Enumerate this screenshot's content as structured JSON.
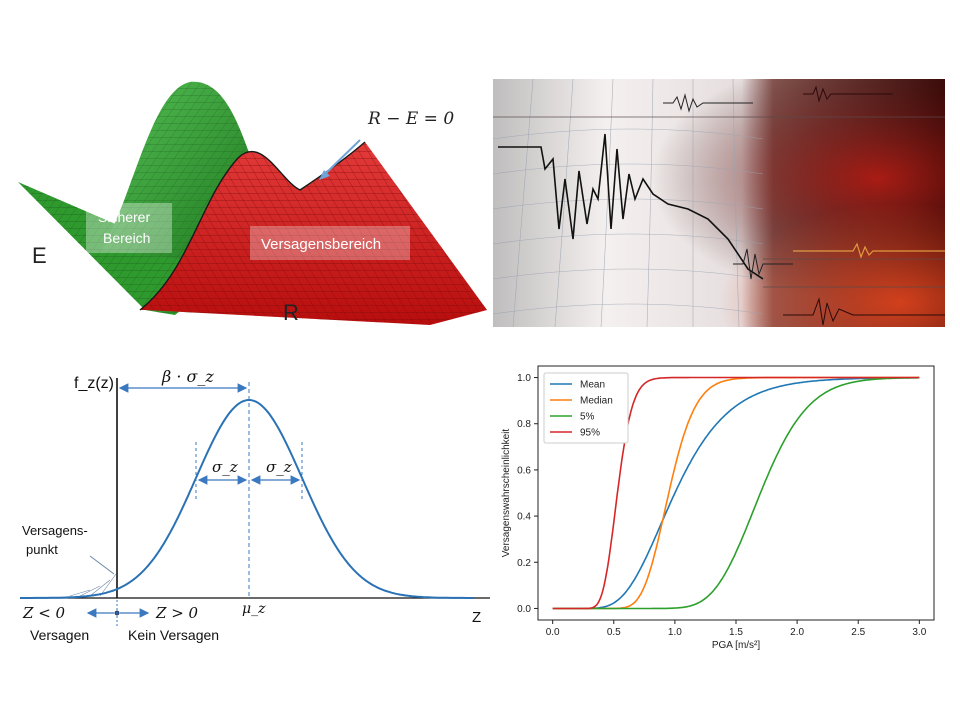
{
  "surface_panel": {
    "axis_e": "E",
    "axis_r": "R",
    "limit_state": "R − E = 0",
    "safe_region": [
      "Sicherer",
      "Bereich"
    ],
    "failure_region": "Versagensbereich",
    "colors": {
      "safe": "#2e9a2e",
      "failure": "#d41515"
    }
  },
  "seismogram_panel": {
    "description_icon": "seismograph-icon"
  },
  "normal_panel": {
    "y_label": "f_z(z)",
    "beta_label": "β · σ_z",
    "sigma_left": "σ_z",
    "sigma_right": "σ_z",
    "mu_label": "μ_z",
    "x_label": "Z",
    "failure_point": [
      "Versagens-",
      "punkt"
    ],
    "z_lt": "Z < 0",
    "z_gt": "Z > 0",
    "failure": "Versagen",
    "no_failure": "Kein Versagen",
    "curve_color": "#2a72b5"
  },
  "chart_data": {
    "type": "line",
    "title": "",
    "xlabel": "PGA [m/s²]",
    "ylabel": "Versagenswahrscheinlichkeit",
    "xlim": [
      -0.12,
      3.12
    ],
    "ylim": [
      -0.05,
      1.05
    ],
    "x_ticks": [
      "0.0",
      "0.5",
      "1.0",
      "1.5",
      "2.0",
      "2.5",
      "3.0"
    ],
    "y_ticks": [
      "0.0",
      "0.2",
      "0.4",
      "0.6",
      "0.8",
      "1.0"
    ],
    "legend_position": "top-left",
    "series": [
      {
        "name": "Mean",
        "color": "#1f77b4",
        "median": 1.0,
        "beta": 0.35
      },
      {
        "name": "Median",
        "color": "#ff7f0e",
        "median": 0.95,
        "beta": 0.18
      },
      {
        "name": "5%",
        "color": "#2ca02c",
        "median": 1.7,
        "beta": 0.18
      },
      {
        "name": "95%",
        "color": "#d62728",
        "median": 0.53,
        "beta": 0.18
      }
    ]
  }
}
